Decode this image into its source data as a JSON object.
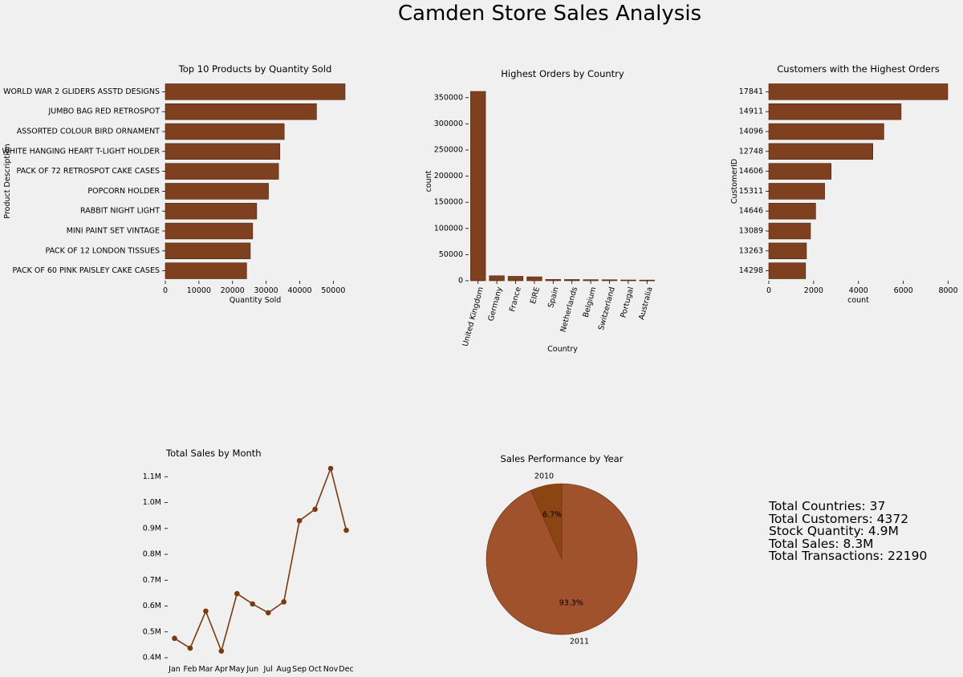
{
  "title": "Camden Store Sales Analysis",
  "colors": {
    "bar": "#7f4020",
    "edge": "#4a2410",
    "line": "#7a3a10",
    "pie_2011": "#a0522d",
    "pie_2010": "#8b4513"
  },
  "chart_data": [
    {
      "type": "bar",
      "orientation": "horizontal",
      "title": "Top 10 Products by Quantity Sold",
      "xlabel": "Quantity Sold",
      "ylabel": "Product Description",
      "categories": [
        "WORLD WAR 2 GLIDERS ASSTD DESIGNS",
        "JUMBO BAG RED RETROSPOT",
        "ASSORTED COLOUR BIRD ORNAMENT",
        "WHITE HANGING HEART T-LIGHT HOLDER",
        "PACK OF 72 RETROSPOT CAKE CASES",
        "POPCORN HOLDER",
        "RABBIT NIGHT LIGHT",
        "MINI PAINT SET VINTAGE",
        "PACK OF 12 LONDON TISSUES",
        "PACK OF 60 PINK PAISLEY CAKE CASES"
      ],
      "values": [
        53500,
        45000,
        35400,
        34100,
        33700,
        30700,
        27200,
        26000,
        25300,
        24200
      ],
      "xlim": [
        0,
        53500
      ],
      "xticks": [
        0,
        10000,
        20000,
        30000,
        40000,
        50000
      ]
    },
    {
      "type": "bar",
      "orientation": "vertical",
      "title": "Highest Orders by Country",
      "xlabel": "Country",
      "ylabel": "count",
      "categories": [
        "United Kingdom",
        "Germany",
        "France",
        "EIRE",
        "Spain",
        "Netherlands",
        "Belgium",
        "Switzerland",
        "Portugal",
        "Australia"
      ],
      "values": [
        361900,
        9500,
        8500,
        7500,
        2500,
        2400,
        2100,
        1900,
        1500,
        1300
      ],
      "ylim": [
        0,
        361900
      ],
      "yticks": [
        0,
        50000,
        100000,
        150000,
        200000,
        250000,
        300000,
        350000
      ]
    },
    {
      "type": "bar",
      "orientation": "horizontal",
      "title": "Customers with the Highest Orders",
      "xlabel": "count",
      "ylabel": "CustomerID",
      "categories": [
        "17841",
        "14911",
        "14096",
        "12748",
        "14606",
        "15311",
        "14646",
        "13089",
        "13263",
        "14298"
      ],
      "values": [
        7980,
        5900,
        5130,
        4640,
        2780,
        2490,
        2090,
        1860,
        1680,
        1640
      ],
      "xlim": [
        0,
        7980
      ],
      "xticks": [
        0,
        2000,
        4000,
        6000,
        8000
      ]
    },
    {
      "type": "line",
      "title": "Total Sales by Month",
      "categories": [
        "Jan",
        "Feb",
        "Mar",
        "Apr",
        "May",
        "Jun",
        "Jul",
        "Aug",
        "Sep",
        "Oct",
        "Nov",
        "Dec"
      ],
      "values": [
        0.475,
        0.437,
        0.58,
        0.426,
        0.648,
        0.608,
        0.574,
        0.616,
        0.93,
        0.974,
        1.132,
        0.893
      ],
      "ylim": [
        0.4,
        1.132
      ],
      "yticks": [
        0.4,
        0.5,
        0.6,
        0.7,
        0.8,
        0.9,
        1.0,
        1.1
      ],
      "ytick_labels": [
        "0.4M",
        "0.5M",
        "0.6M",
        "0.7M",
        "0.8M",
        "0.9M",
        "1.0M",
        "1.1M"
      ]
    },
    {
      "type": "pie",
      "title": "Sales Performance by Year",
      "labels": [
        "2010",
        "2011"
      ],
      "values": [
        6.7,
        93.3
      ],
      "pct_labels": [
        "6.7%",
        "93.3%"
      ]
    }
  ],
  "stats": [
    "Total Countries: 37",
    "Total Customers: 4372",
    "Stock Quantity: 4.9M",
    "Total Sales: 8.3M",
    "Total Transactions: 22190"
  ]
}
